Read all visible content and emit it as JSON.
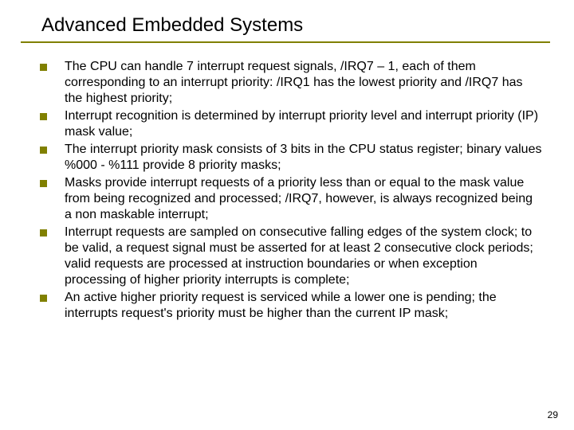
{
  "title": "Advanced Embedded Systems",
  "bullets": [
    "The CPU can handle 7 interrupt request signals, /IRQ7 – 1, each of them corresponding to an interrupt priority: /IRQ1 has the lowest priority and /IRQ7 has the highest priority;",
    "Interrupt recognition is determined by interrupt priority level and interrupt priority (IP) mask value;",
    "The interrupt priority mask consists of 3 bits in the CPU status register; binary values %000 - %111 provide 8 priority masks;",
    "Masks provide interrupt requests of a priority less than or equal to the mask value from being recognized and processed; /IRQ7, however, is always recognized being a non maskable interrupt;",
    "Interrupt requests are sampled on consecutive falling edges of the system clock; to be valid, a request signal must be asserted for at least 2 consecutive clock periods; valid requests are processed at instruction boundaries or when exception processing of higher priority interrupts is complete;",
    "An active higher priority request is serviced while a lower one is pending; the interrupts request's priority must be higher than the current IP mask;"
  ],
  "page_number": "29",
  "colors": {
    "accent": "#808000",
    "text": "#000000",
    "background": "#ffffff"
  },
  "typography": {
    "title_fontsize": 24,
    "body_fontsize": 16,
    "pagenum_fontsize": 12,
    "font_family": "Arial"
  }
}
